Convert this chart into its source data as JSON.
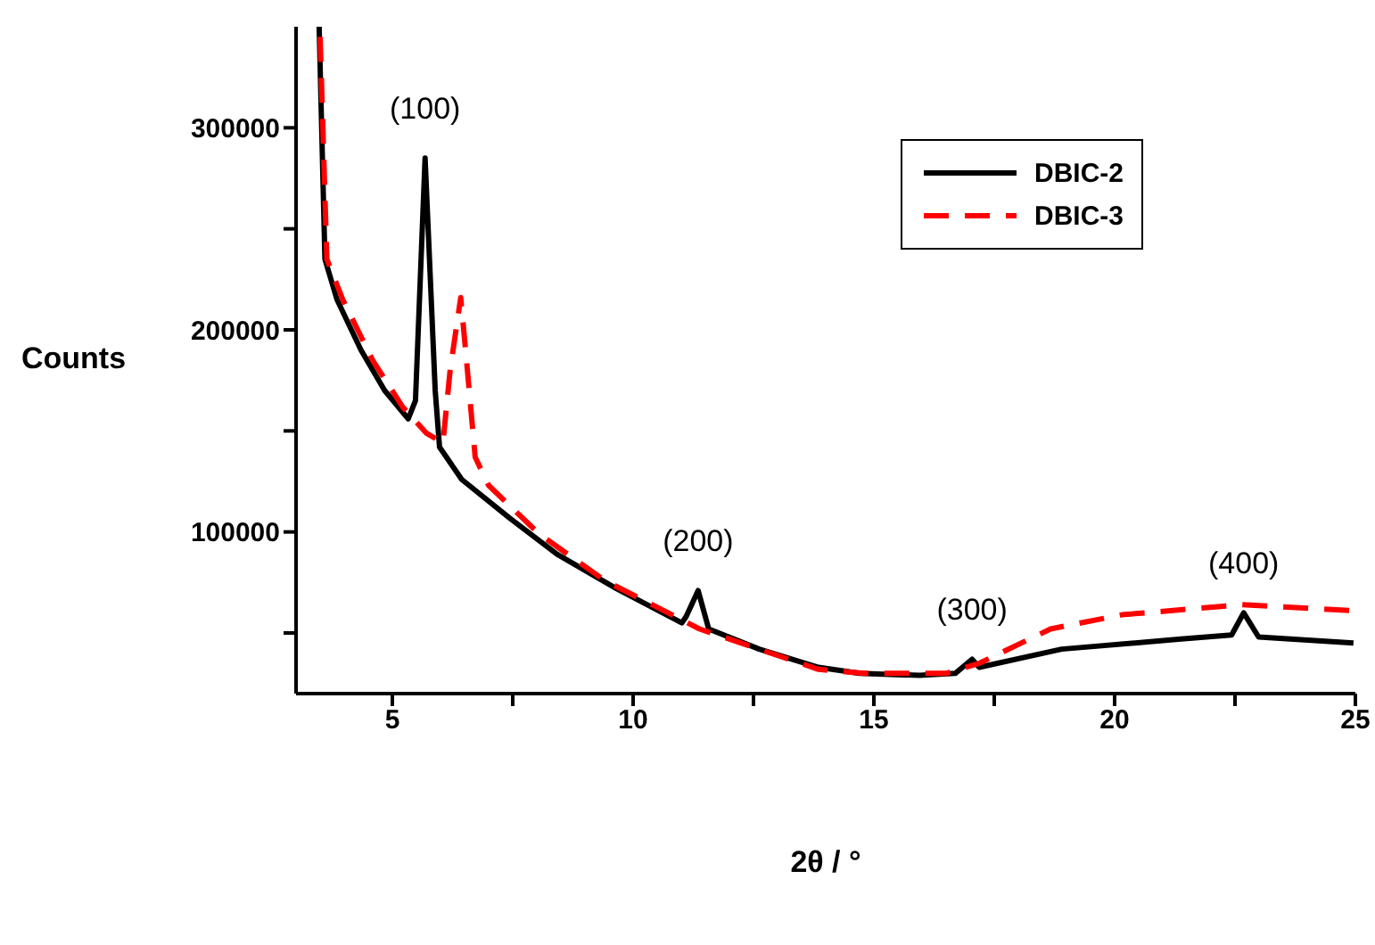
{
  "chart_data": {
    "type": "line",
    "xlabel": "2θ / °",
    "ylabel": "Counts",
    "xlim": [
      3,
      25
    ],
    "xticks": [
      5,
      {
        "value": 7.5,
        "label": null
      },
      10,
      {
        "value": 12.5,
        "label": null
      },
      15,
      {
        "value": 17.5,
        "label": null
      },
      20,
      {
        "value": 22.5,
        "label": null
      },
      25
    ],
    "ylim": [
      20000,
      350000
    ],
    "yticks": [
      {
        "value": 50000,
        "label": null
      },
      100000,
      {
        "value": 150000,
        "label": null
      },
      200000,
      {
        "value": 250000,
        "label": null
      },
      300000
    ],
    "grid": false,
    "legend": "top right",
    "marker": "none",
    "annotations": [
      {
        "text": "(100)",
        "x": 5.68,
        "y": 285000
      },
      {
        "text": "(200)",
        "x": 11.35,
        "y": 71000
      },
      {
        "text": "(300)",
        "x": 17.04,
        "y": 37000
      },
      {
        "text": "(400)",
        "x": 22.68,
        "y": 60000
      }
    ],
    "series": [
      {
        "name": "DBIC-2",
        "color": "#000000",
        "line_style": "solid",
        "x": [
          3.48,
          3.6,
          3.85,
          4.35,
          4.84,
          5.33,
          5.48,
          5.68,
          5.89,
          5.98,
          6.44,
          7.43,
          8.42,
          9.65,
          11.01,
          11.1,
          11.35,
          11.57,
          12.62,
          13.85,
          14.7,
          15.95,
          16.69,
          17.04,
          17.19,
          18.9,
          21.38,
          22.43,
          22.68,
          22.99,
          24.96
        ],
        "values": [
          350000,
          235000,
          215000,
          190000,
          170000,
          156000,
          165000,
          285000,
          170000,
          142000,
          126000,
          107000,
          89000,
          72000,
          55000,
          58000,
          71000,
          52000,
          42000,
          33000,
          30000,
          29000,
          30000,
          37000,
          33000,
          42000,
          47000,
          49000,
          60000,
          48000,
          45000
        ]
      },
      {
        "name": "DBIC-3",
        "color": "#ff0000",
        "line_style": "dashed",
        "x": [
          3.5,
          3.64,
          3.97,
          4.59,
          5.21,
          5.7,
          6.05,
          6.2,
          6.42,
          6.54,
          6.72,
          7.0,
          8.05,
          9.41,
          11.38,
          13.85,
          14.8,
          16.5,
          17.19,
          18.67,
          20.15,
          22.62,
          24.96
        ],
        "values": [
          345000,
          235000,
          215000,
          185000,
          162000,
          149000,
          144000,
          180000,
          216000,
          185000,
          137000,
          123000,
          99000,
          76000,
          52000,
          32000,
          30000,
          30000,
          35000,
          52000,
          59000,
          64000,
          61000
        ]
      }
    ]
  }
}
